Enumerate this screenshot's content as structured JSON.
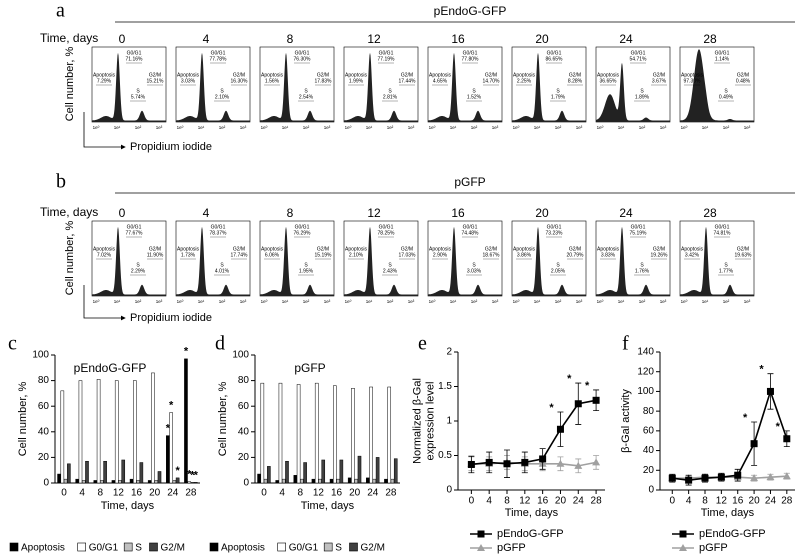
{
  "panel_a": {
    "letter": "a",
    "title": "pEndoG-GFP",
    "time_label": "Time, days",
    "y_label": "Cell number, %",
    "x_label": "Propidium iodide",
    "x_ticks": [
      "1e⁰",
      "1e¹",
      "1e²",
      "1e³"
    ],
    "gate_labels": {
      "apoptosis": "Apoptosis",
      "g1": "G0/G1",
      "s": "S",
      "g2": "G2/M"
    },
    "plots": [
      {
        "day": "0",
        "apoptosis": "7.29%",
        "g1": "71.16%",
        "s": "5.74%",
        "g2": "15.21%"
      },
      {
        "day": "4",
        "apoptosis": "3.03%",
        "g1": "77.78%",
        "s": "2.10%",
        "g2": "16.30%"
      },
      {
        "day": "8",
        "apoptosis": "1.56%",
        "g1": "76.30%",
        "s": "2.54%",
        "g2": "17.83%"
      },
      {
        "day": "12",
        "apoptosis": "1.99%",
        "g1": "77.19%",
        "s": "2.81%",
        "g2": "17.44%"
      },
      {
        "day": "16",
        "apoptosis": "4.65%",
        "g1": "77.80%",
        "s": "1.52%",
        "g2": "14.70%"
      },
      {
        "day": "20",
        "apoptosis": "2.25%",
        "g1": "86.65%",
        "s": "1.79%",
        "g2": "8.28%"
      },
      {
        "day": "24",
        "apoptosis": "36.65%",
        "g1": "54.71%",
        "s": "1.89%",
        "g2": "3.67%"
      },
      {
        "day": "28",
        "apoptosis": "97.30%",
        "g1": "1.14%",
        "s": "0.49%",
        "g2": "0.48%"
      }
    ]
  },
  "panel_b": {
    "letter": "b",
    "title": "pGFP",
    "time_label": "Time, days",
    "y_label": "Cell number, %",
    "x_label": "Propidium iodide",
    "x_ticks": [
      "1e⁰",
      "1e¹",
      "1e²",
      "1e³"
    ],
    "gate_labels": {
      "apoptosis": "Apoptosis",
      "g1": "G0/G1",
      "s": "S",
      "g2": "G2/M"
    },
    "plots": [
      {
        "day": "0",
        "apoptosis": "7.02%",
        "g1": "77.67%",
        "s": "2.29%",
        "g2": "11.90%"
      },
      {
        "day": "4",
        "apoptosis": "1.73%",
        "g1": "78.37%",
        "s": "4.01%",
        "g2": "17.74%"
      },
      {
        "day": "8",
        "apoptosis": "6.06%",
        "g1": "76.29%",
        "s": "1.95%",
        "g2": "15.19%"
      },
      {
        "day": "12",
        "apoptosis": "2.10%",
        "g1": "78.25%",
        "s": "2.43%",
        "g2": "17.03%"
      },
      {
        "day": "16",
        "apoptosis": "2.90%",
        "g1": "74.48%",
        "s": "3.03%",
        "g2": "18.67%"
      },
      {
        "day": "20",
        "apoptosis": "3.86%",
        "g1": "73.23%",
        "s": "2.05%",
        "g2": "20.79%"
      },
      {
        "day": "24",
        "apoptosis": "3.83%",
        "g1": "75.19%",
        "s": "1.76%",
        "g2": "19.26%"
      },
      {
        "day": "28",
        "apoptosis": "3.42%",
        "g1": "74.81%",
        "s": "1.77%",
        "g2": "19.63%"
      }
    ]
  },
  "chart_data": [
    {
      "type": "bar",
      "panel": "c",
      "title": "pEndoG-GFP",
      "xlabel": "Time, days",
      "ylabel": "Cell number, %",
      "categories": [
        "0",
        "4",
        "8",
        "12",
        "16",
        "20",
        "24",
        "28"
      ],
      "ylim": [
        0,
        100
      ],
      "yticks": [
        0,
        20,
        40,
        60,
        80,
        100
      ],
      "legend": "bottom",
      "series": [
        {
          "name": "Apoptosis",
          "color": "#000000",
          "values": [
            7,
            3,
            2,
            2,
            3,
            2,
            37,
            97
          ],
          "annotations": [
            null,
            null,
            null,
            null,
            null,
            null,
            "*",
            "*"
          ]
        },
        {
          "name": "G0/G1",
          "color": "#ffffff",
          "values": [
            72,
            80,
            81,
            80,
            80,
            86,
            55,
            1
          ],
          "annotations": [
            null,
            null,
            null,
            null,
            null,
            null,
            "*",
            "*"
          ]
        },
        {
          "name": "S",
          "color": "#c0c0c0",
          "values": [
            3,
            2,
            2,
            2,
            2,
            2,
            2,
            0.5
          ],
          "annotations": [
            null,
            null,
            null,
            null,
            null,
            null,
            null,
            "*"
          ]
        },
        {
          "name": "G2/M",
          "color": "#404040",
          "values": [
            15,
            17,
            17,
            18,
            16,
            9,
            4,
            0.5
          ],
          "annotations": [
            null,
            null,
            null,
            null,
            null,
            null,
            "*",
            "*"
          ]
        }
      ]
    },
    {
      "type": "bar",
      "panel": "d",
      "title": "pGFP",
      "xlabel": "Time, days",
      "ylabel": "Cell number, %",
      "categories": [
        "0",
        "4",
        "8",
        "12",
        "16",
        "20",
        "24",
        "28"
      ],
      "ylim": [
        0,
        100
      ],
      "yticks": [
        0,
        20,
        40,
        60,
        80,
        100
      ],
      "legend": "bottom",
      "series": [
        {
          "name": "Apoptosis",
          "color": "#000000",
          "values": [
            7,
            2,
            6,
            3,
            3,
            4,
            4,
            3
          ]
        },
        {
          "name": "G0/G1",
          "color": "#ffffff",
          "values": [
            78,
            78,
            77,
            78,
            76,
            74,
            75,
            75
          ]
        },
        {
          "name": "S",
          "color": "#c0c0c0",
          "values": [
            3,
            3,
            3,
            3,
            3,
            3,
            3,
            3
          ]
        },
        {
          "name": "G2/M",
          "color": "#404040",
          "values": [
            13,
            17,
            16,
            18,
            18,
            21,
            20,
            19
          ]
        }
      ]
    },
    {
      "type": "line",
      "panel": "e",
      "xlabel": "Time, days",
      "ylabel": [
        "Normalized β-Gal",
        "expression level"
      ],
      "x": [
        0,
        4,
        8,
        12,
        16,
        20,
        24,
        28
      ],
      "xlim": [
        -3,
        30
      ],
      "xticks": [
        0,
        4,
        8,
        12,
        16,
        20,
        24,
        28
      ],
      "ylim": [
        0,
        2
      ],
      "yticks": [
        0,
        0.5,
        1,
        1.5,
        2
      ],
      "legend": "bottom",
      "series": [
        {
          "name": "pEndoG-GFP",
          "color": "#000000",
          "marker": "square",
          "values": [
            0.37,
            0.4,
            0.38,
            0.4,
            0.45,
            0.88,
            1.25,
            1.3
          ],
          "errors": [
            0.12,
            0.15,
            0.2,
            0.15,
            0.15,
            0.25,
            0.3,
            0.15
          ],
          "annotations": [
            null,
            null,
            null,
            null,
            null,
            "*",
            "*",
            "*"
          ]
        },
        {
          "name": "pGFP",
          "color": "#a0a0a0",
          "marker": "triangle",
          "values": [
            0.38,
            0.38,
            0.4,
            0.38,
            0.38,
            0.38,
            0.35,
            0.4
          ],
          "errors": [
            0.1,
            0.1,
            0.1,
            0.1,
            0.1,
            0.1,
            0.1,
            0.1
          ]
        }
      ]
    },
    {
      "type": "line",
      "panel": "f",
      "xlabel": "Time, days",
      "ylabel": [
        "β-Gal activity"
      ],
      "x": [
        0,
        4,
        8,
        12,
        16,
        20,
        24,
        28
      ],
      "xlim": [
        -3,
        30
      ],
      "xticks": [
        0,
        4,
        8,
        12,
        16,
        20,
        24,
        28
      ],
      "ylim": [
        0,
        140
      ],
      "yticks": [
        0,
        20,
        40,
        60,
        80,
        100,
        120,
        140
      ],
      "legend": "bottom",
      "series": [
        {
          "name": "pEndoG-GFP",
          "color": "#000000",
          "marker": "square",
          "values": [
            12,
            10,
            12,
            13,
            15,
            47,
            100,
            52
          ],
          "errors": [
            4,
            5,
            4,
            4,
            6,
            22,
            18,
            8
          ],
          "annotations": [
            null,
            null,
            null,
            null,
            null,
            "*",
            "*",
            "*"
          ]
        },
        {
          "name": "pGFP",
          "color": "#a0a0a0",
          "marker": "triangle",
          "values": [
            12,
            12,
            13,
            13,
            13,
            12,
            13,
            14
          ],
          "errors": [
            3,
            3,
            3,
            3,
            3,
            3,
            3,
            3
          ]
        }
      ]
    }
  ]
}
